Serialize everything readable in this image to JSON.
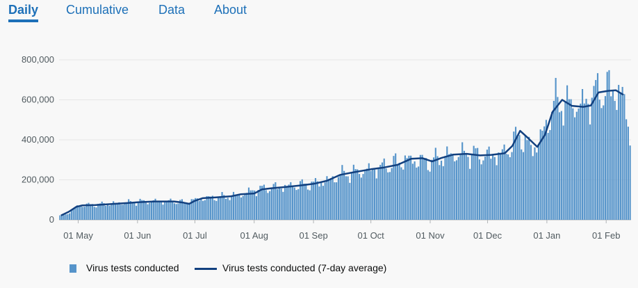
{
  "tabs": [
    {
      "label": "Daily",
      "active": true
    },
    {
      "label": "Cumulative",
      "active": false
    },
    {
      "label": "Data",
      "active": false
    },
    {
      "label": "About",
      "active": false
    }
  ],
  "colors": {
    "bar": "#5694ca",
    "line": "#12407f",
    "tab": "#1d70b8"
  },
  "chart_data": {
    "type": "bar",
    "x_tick_labels": [
      "01 May",
      "01 Jun",
      "01 Jul",
      "01 Aug",
      "01 Sep",
      "01 Oct",
      "01 Nov",
      "01 Dec",
      "01 Jan",
      "01 Feb"
    ],
    "y_tick_labels": [
      "0",
      "200,000",
      "400,000",
      "600,000",
      "800,000"
    ],
    "ylim": [
      0,
      800000
    ],
    "grid": true,
    "legend_position": "bottom",
    "x_range": [
      "2020-04-21",
      "2021-02-14"
    ],
    "series": [
      {
        "name": "Virus tests conducted",
        "type": "bar",
        "anchors": [
          [
            "2020-04-21",
            20000
          ],
          [
            "2020-04-25",
            30000
          ],
          [
            "2020-04-28",
            55000
          ],
          [
            "2020-05-01",
            72000
          ],
          [
            "2020-05-10",
            76000
          ],
          [
            "2020-05-20",
            82000
          ],
          [
            "2020-06-01",
            90000
          ],
          [
            "2020-06-10",
            92000
          ],
          [
            "2020-06-20",
            92000
          ],
          [
            "2020-06-25",
            85000
          ],
          [
            "2020-07-01",
            100000
          ],
          [
            "2020-07-10",
            112000
          ],
          [
            "2020-07-20",
            118000
          ],
          [
            "2020-07-25",
            125000
          ],
          [
            "2020-08-01",
            150000
          ],
          [
            "2020-08-10",
            160000
          ],
          [
            "2020-08-20",
            168000
          ],
          [
            "2020-09-01",
            180000
          ],
          [
            "2020-09-10",
            200000
          ],
          [
            "2020-09-15",
            225000
          ],
          [
            "2020-09-25",
            240000
          ],
          [
            "2020-10-01",
            250000
          ],
          [
            "2020-10-10",
            270000
          ],
          [
            "2020-10-20",
            300000
          ],
          [
            "2020-11-01",
            290000
          ],
          [
            "2020-11-10",
            320000
          ],
          [
            "2020-11-20",
            330000
          ],
          [
            "2020-12-01",
            320000
          ],
          [
            "2020-12-10",
            330000
          ],
          [
            "2020-12-18",
            420000
          ],
          [
            "2020-12-25",
            350000
          ],
          [
            "2020-12-31",
            440000
          ],
          [
            "2021-01-05",
            580000
          ],
          [
            "2021-01-10",
            580000
          ],
          [
            "2021-01-20",
            570000
          ],
          [
            "2021-01-28",
            640000
          ],
          [
            "2021-02-05",
            650000
          ],
          [
            "2021-02-10",
            620000
          ],
          [
            "2021-02-14",
            430000
          ]
        ]
      },
      {
        "name": "Virus tests conducted (7-day average)",
        "type": "line",
        "points": [
          [
            "2020-04-22",
            22000
          ],
          [
            "2020-04-26",
            40000
          ],
          [
            "2020-04-30",
            65000
          ],
          [
            "2020-05-03",
            72000
          ],
          [
            "2020-05-10",
            74000
          ],
          [
            "2020-05-20",
            80000
          ],
          [
            "2020-05-28",
            85000
          ],
          [
            "2020-06-01",
            88000
          ],
          [
            "2020-06-10",
            92000
          ],
          [
            "2020-06-20",
            92000
          ],
          [
            "2020-06-25",
            86000
          ],
          [
            "2020-06-28",
            80000
          ],
          [
            "2020-07-01",
            95000
          ],
          [
            "2020-07-05",
            108000
          ],
          [
            "2020-07-12",
            112000
          ],
          [
            "2020-07-20",
            118000
          ],
          [
            "2020-07-25",
            128000
          ],
          [
            "2020-08-01",
            132000
          ],
          [
            "2020-08-05",
            152000
          ],
          [
            "2020-08-10",
            158000
          ],
          [
            "2020-08-18",
            165000
          ],
          [
            "2020-08-25",
            172000
          ],
          [
            "2020-09-01",
            180000
          ],
          [
            "2020-09-08",
            195000
          ],
          [
            "2020-09-15",
            225000
          ],
          [
            "2020-09-22",
            238000
          ],
          [
            "2020-10-01",
            253000
          ],
          [
            "2020-10-08",
            262000
          ],
          [
            "2020-10-15",
            275000
          ],
          [
            "2020-10-22",
            305000
          ],
          [
            "2020-10-28",
            308000
          ],
          [
            "2020-11-02",
            292000
          ],
          [
            "2020-11-07",
            310000
          ],
          [
            "2020-11-13",
            326000
          ],
          [
            "2020-11-20",
            330000
          ],
          [
            "2020-11-27",
            322000
          ],
          [
            "2020-12-03",
            325000
          ],
          [
            "2020-12-10",
            333000
          ],
          [
            "2020-12-14",
            370000
          ],
          [
            "2020-12-18",
            445000
          ],
          [
            "2020-12-22",
            410000
          ],
          [
            "2020-12-27",
            365000
          ],
          [
            "2020-12-31",
            425000
          ],
          [
            "2021-01-04",
            540000
          ],
          [
            "2021-01-09",
            600000
          ],
          [
            "2021-01-14",
            570000
          ],
          [
            "2021-01-20",
            565000
          ],
          [
            "2021-01-24",
            572000
          ],
          [
            "2021-01-28",
            637000
          ],
          [
            "2021-02-02",
            645000
          ],
          [
            "2021-02-06",
            648000
          ],
          [
            "2021-02-10",
            625000
          ]
        ]
      }
    ]
  }
}
